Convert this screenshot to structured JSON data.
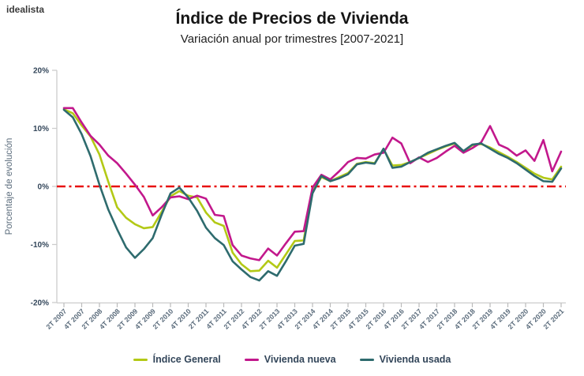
{
  "header": {
    "logo": "idealista",
    "title": "Índice de Precios de Vivienda",
    "subtitle": "Variación anual por trimestres [2007-2021]"
  },
  "chart_data": {
    "type": "line",
    "title": "Índice de Precios de Vivienda",
    "subtitle": "Variación anual por trimestres [2007-2021]",
    "xlabel": "",
    "ylabel": "Porcentaje de evolución",
    "ylim": [
      -20,
      20
    ],
    "yticks": [
      20,
      10,
      0,
      -10,
      -20
    ],
    "ytick_suffix": "%",
    "grid": false,
    "x_ticks_every": 2,
    "legend_position": "bottom",
    "zero_line": {
      "value": 0,
      "style": "dash-dot",
      "color": "#e81212"
    },
    "appearance": {
      "axis_color": "#cccccc",
      "y_tick_label_color": "#33465a",
      "x_tick_label_color": "#5b6c7c",
      "axis_title_color": "#5b6c7c",
      "zero_line_color": "#e81212"
    },
    "categories": [
      "2T 2007",
      "3T 2007",
      "4T 2007",
      "1T 2008",
      "2T 2008",
      "3T 2008",
      "4T 2008",
      "1T 2009",
      "2T 2009",
      "3T 2009",
      "4T 2009",
      "1T 2010",
      "2T 2010",
      "3T 2010",
      "4T 2010",
      "1T 2011",
      "2T 2011",
      "3T 2011",
      "4T 2011",
      "1T 2012",
      "2T 2012",
      "3T 2012",
      "4T 2012",
      "1T 2013",
      "2T 2013",
      "3T 2013",
      "4T 2013",
      "1T 2014",
      "2T 2014",
      "3T 2014",
      "4T 2014",
      "1T 2015",
      "2T 2015",
      "3T 2015",
      "4T 2015",
      "1T 2016",
      "2T 2016",
      "3T 2016",
      "4T 2016",
      "1T 2017",
      "2T 2017",
      "3T 2017",
      "4T 2017",
      "1T 2018",
      "2T 2018",
      "3T 2018",
      "4T 2018",
      "1T 2019",
      "2T 2019",
      "3T 2019",
      "4T 2019",
      "1T 2020",
      "2T 2020",
      "3T 2020",
      "4T 2020",
      "1T 2021",
      "2T 2021"
    ],
    "series": [
      {
        "name": "Índice General",
        "color": "#b3c916",
        "values": [
          13.3,
          12.6,
          10.5,
          8.6,
          5.5,
          0.8,
          -3.6,
          -5.4,
          -6.5,
          -7.2,
          -7.0,
          -4.4,
          -1.7,
          -0.8,
          -1.6,
          -1.9,
          -4.5,
          -6.2,
          -6.8,
          -11.4,
          -13.4,
          -14.6,
          -14.5,
          -12.8,
          -14.0,
          -11.7,
          -9.4,
          -9.3,
          -0.9,
          1.6,
          0.9,
          1.6,
          2.3,
          3.9,
          4.2,
          4.0,
          6.4,
          3.6,
          3.7,
          4.2,
          4.9,
          5.6,
          6.3,
          6.9,
          7.4,
          6.0,
          7.1,
          7.3,
          6.7,
          5.9,
          5.1,
          4.2,
          3.2,
          2.2,
          1.5,
          1.2,
          3.4
        ]
      },
      {
        "name": "Vivienda nueva",
        "color": "#c2188c",
        "values": [
          13.5,
          13.5,
          11.0,
          8.7,
          7.2,
          5.3,
          4.0,
          2.2,
          0.3,
          -1.8,
          -5.0,
          -3.6,
          -1.9,
          -1.7,
          -2.2,
          -1.6,
          -2.1,
          -4.9,
          -5.1,
          -10.1,
          -11.9,
          -12.4,
          -12.7,
          -10.7,
          -11.9,
          -9.8,
          -7.8,
          -7.7,
          -0.2,
          2.0,
          1.2,
          2.6,
          4.2,
          4.9,
          4.8,
          5.5,
          5.8,
          8.4,
          7.4,
          4.0,
          5.0,
          4.2,
          4.9,
          6.0,
          7.0,
          5.8,
          6.6,
          7.6,
          10.4,
          7.2,
          6.5,
          5.3,
          6.2,
          4.4,
          8.0,
          2.6,
          6.0
        ]
      },
      {
        "name": "Vivienda usada",
        "color": "#2e6b6e",
        "values": [
          13.2,
          11.9,
          9.0,
          5.2,
          0.3,
          -4.0,
          -7.4,
          -10.5,
          -12.3,
          -10.8,
          -8.9,
          -4.9,
          -1.2,
          -0.2,
          -1.9,
          -4.2,
          -7.1,
          -8.9,
          -10.1,
          -12.9,
          -14.3,
          -15.6,
          -16.2,
          -14.6,
          -15.4,
          -12.9,
          -10.2,
          -9.9,
          -1.2,
          1.8,
          0.9,
          1.4,
          2.1,
          3.8,
          4.1,
          3.9,
          6.5,
          3.2,
          3.4,
          4.2,
          4.9,
          5.8,
          6.4,
          7.0,
          7.5,
          6.1,
          7.2,
          7.4,
          6.5,
          5.6,
          4.9,
          4.0,
          2.9,
          1.8,
          0.9,
          0.8,
          3.1
        ]
      }
    ]
  }
}
